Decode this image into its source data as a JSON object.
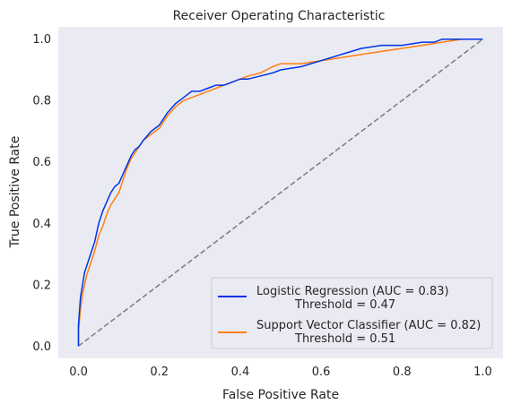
{
  "chart_data": {
    "type": "line",
    "title": "Receiver Operating Characteristic",
    "xlabel": "False Positive Rate",
    "ylabel": "True Positive Rate",
    "xlim": [
      -0.05,
      1.05
    ],
    "ylim": [
      -0.04,
      1.04
    ],
    "xticks": [
      "0.0",
      "0.2",
      "0.4",
      "0.6",
      "0.8",
      "1.0"
    ],
    "yticks": [
      "0.0",
      "0.2",
      "0.4",
      "0.6",
      "0.8",
      "1.0"
    ],
    "grid": false,
    "legend_position": "bottom-right",
    "background": "#eaeaf2",
    "series": [
      {
        "name": "Logistic Regression (AUC = 0.83)",
        "threshold_label": "Threshold = 0.47",
        "color": "#0033e6",
        "x": [
          0.0,
          0.0,
          0.005,
          0.01,
          0.015,
          0.02,
          0.03,
          0.04,
          0.05,
          0.06,
          0.07,
          0.08,
          0.09,
          0.1,
          0.11,
          0.12,
          0.13,
          0.14,
          0.15,
          0.16,
          0.18,
          0.2,
          0.22,
          0.24,
          0.26,
          0.28,
          0.3,
          0.32,
          0.34,
          0.36,
          0.38,
          0.4,
          0.42,
          0.45,
          0.48,
          0.5,
          0.55,
          0.6,
          0.65,
          0.7,
          0.75,
          0.8,
          0.85,
          0.88,
          0.9,
          0.95,
          1.0
        ],
        "y": [
          0.0,
          0.07,
          0.16,
          0.2,
          0.24,
          0.26,
          0.3,
          0.34,
          0.4,
          0.44,
          0.47,
          0.5,
          0.52,
          0.53,
          0.56,
          0.59,
          0.62,
          0.64,
          0.65,
          0.67,
          0.7,
          0.72,
          0.76,
          0.79,
          0.81,
          0.83,
          0.83,
          0.84,
          0.85,
          0.85,
          0.86,
          0.87,
          0.87,
          0.88,
          0.89,
          0.9,
          0.91,
          0.93,
          0.95,
          0.97,
          0.98,
          0.98,
          0.99,
          0.99,
          1.0,
          1.0,
          1.0
        ]
      },
      {
        "name": "Support Vector Classifier (AUC = 0.82)",
        "threshold_label": "Threshold = 0.51",
        "color": "#ff7f0e",
        "x": [
          0.0,
          0.0,
          0.005,
          0.01,
          0.015,
          0.02,
          0.03,
          0.04,
          0.05,
          0.06,
          0.07,
          0.08,
          0.09,
          0.1,
          0.11,
          0.12,
          0.13,
          0.14,
          0.15,
          0.16,
          0.18,
          0.2,
          0.22,
          0.24,
          0.26,
          0.28,
          0.3,
          0.32,
          0.34,
          0.36,
          0.38,
          0.4,
          0.42,
          0.45,
          0.48,
          0.5,
          0.55,
          0.6,
          0.65,
          0.7,
          0.75,
          0.8,
          0.85,
          0.9,
          0.95,
          1.0
        ],
        "y": [
          0.0,
          0.05,
          0.12,
          0.17,
          0.2,
          0.23,
          0.27,
          0.31,
          0.36,
          0.39,
          0.43,
          0.46,
          0.48,
          0.5,
          0.54,
          0.58,
          0.61,
          0.63,
          0.65,
          0.67,
          0.69,
          0.71,
          0.75,
          0.78,
          0.8,
          0.81,
          0.82,
          0.83,
          0.84,
          0.85,
          0.86,
          0.87,
          0.88,
          0.89,
          0.91,
          0.92,
          0.92,
          0.93,
          0.94,
          0.95,
          0.96,
          0.97,
          0.98,
          0.99,
          1.0,
          1.0
        ]
      },
      {
        "name": "",
        "color": "#808080",
        "dashed": true,
        "x": [
          0.0,
          1.0
        ],
        "y": [
          0.0,
          1.0
        ]
      }
    ]
  }
}
